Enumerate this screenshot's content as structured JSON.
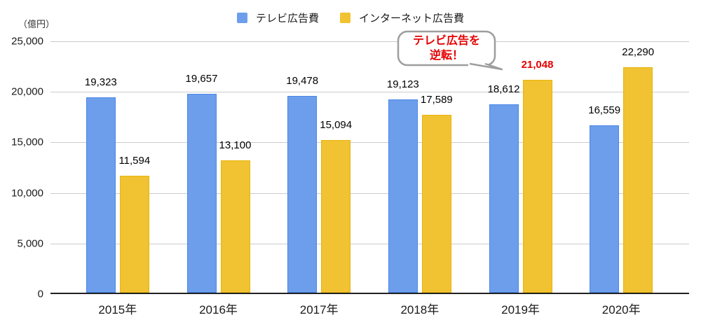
{
  "unit_label": "（億円）",
  "legend": [
    {
      "label": "テレビ広告費",
      "color": "#6d9eeb"
    },
    {
      "label": "インターネット広告費",
      "color": "#f1c232"
    }
  ],
  "annotation": {
    "lines": [
      "テレビ広告を",
      "逆転！"
    ],
    "color": "#e60000",
    "border_color": "#9e9e9e"
  },
  "chart_data": {
    "type": "bar",
    "title": "",
    "categories": [
      "2015年",
      "2016年",
      "2017年",
      "2018年",
      "2019年",
      "2020年"
    ],
    "series": [
      {
        "name": "テレビ広告費",
        "color": "#6d9eeb",
        "border_color": "#4a86e8",
        "values": [
          19323,
          19657,
          19478,
          19123,
          18612,
          16559
        ]
      },
      {
        "name": "インターネット広告費",
        "color": "#f1c232",
        "border_color": "#e8b40c",
        "values": [
          11594,
          13100,
          15094,
          17589,
          21048,
          22290
        ]
      }
    ],
    "xlabel": "",
    "ylabel": "（億円）",
    "ylim": [
      0,
      25000
    ],
    "yticks": [
      0,
      5000,
      10000,
      15000,
      20000,
      25000
    ],
    "ytick_labels": [
      "0",
      "5,000",
      "10,000",
      "15,000",
      "20,000",
      "25,000"
    ],
    "grid": true,
    "legend_position": "top",
    "highlight": {
      "series": 1,
      "index": 4,
      "color": "#e60000"
    }
  }
}
